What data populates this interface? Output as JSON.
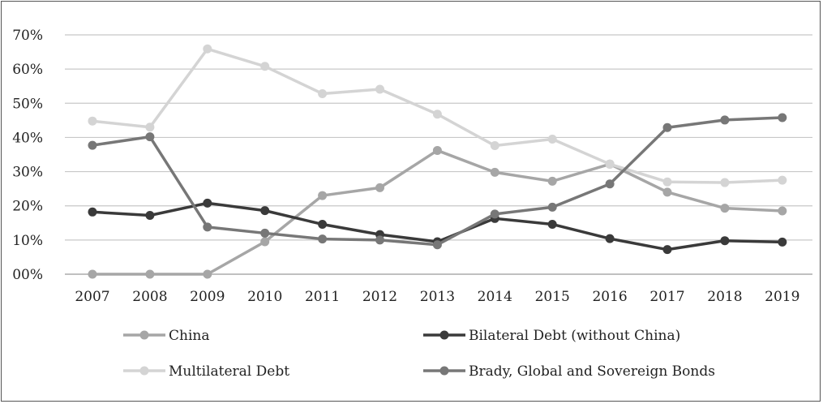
{
  "chart_data": {
    "type": "line",
    "title": "",
    "xlabel": "",
    "ylabel": "",
    "x": [
      "2007",
      "2008",
      "2009",
      "2010",
      "2011",
      "2012",
      "2013",
      "2014",
      "2015",
      "2016",
      "2017",
      "2018",
      "2019"
    ],
    "ylim": [
      0,
      70
    ],
    "yticks": [
      0,
      10,
      20,
      30,
      40,
      50,
      60,
      70
    ],
    "ytick_labels": [
      "00%",
      "10%",
      "20%",
      "30%",
      "40%",
      "50%",
      "60%",
      "70%"
    ],
    "grid": "horizontal",
    "legend_position": "bottom",
    "series": [
      {
        "name": "China",
        "color": "#a6a6a6",
        "values": [
          0,
          0,
          0,
          9.5,
          23,
          25.3,
          36.2,
          29.8,
          27.2,
          32.2,
          24,
          19.3,
          18.5
        ]
      },
      {
        "name": "Bilateral Debt (without China)",
        "color": "#3a3a3a",
        "values": [
          18.2,
          17.2,
          20.8,
          18.6,
          14.6,
          11.6,
          9.5,
          16.3,
          14.6,
          10.4,
          7.2,
          9.8,
          9.4
        ]
      },
      {
        "name": "Multilateral Debt",
        "color": "#d4d4d4",
        "values": [
          44.8,
          43,
          65.9,
          60.8,
          52.8,
          54.1,
          46.8,
          37.6,
          39.5,
          32.2,
          27,
          26.8,
          27.5
        ]
      },
      {
        "name": "Brady, Global and Sovereign Bonds",
        "color": "#777777",
        "values": [
          37.7,
          40.2,
          13.8,
          12,
          10.3,
          10,
          8.6,
          17.6,
          19.6,
          26.4,
          42.9,
          45.1,
          45.8
        ]
      }
    ]
  }
}
